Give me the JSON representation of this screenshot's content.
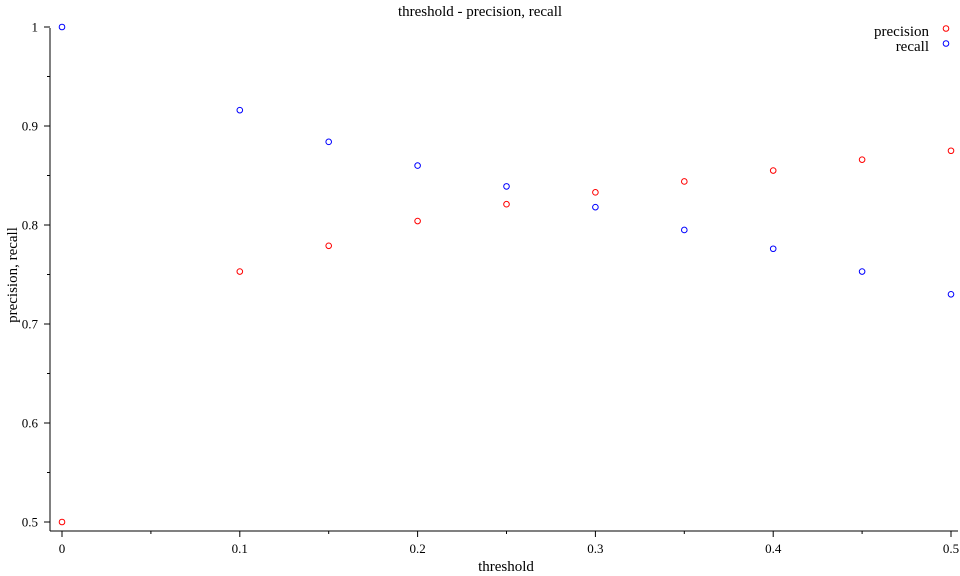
{
  "chart_data": {
    "type": "scatter",
    "title": "threshold - precision, recall",
    "xlabel": "threshold",
    "ylabel": "precision, recall",
    "xlim": [
      0,
      0.5
    ],
    "ylim": [
      0.5,
      1.0
    ],
    "x_major_ticks": [
      0,
      0.1,
      0.2,
      0.3,
      0.4,
      0.5
    ],
    "x_minor_ticks": [
      0.05,
      0.15,
      0.25,
      0.35,
      0.45
    ],
    "y_major_ticks": [
      0.5,
      0.6,
      0.7,
      0.8,
      0.9,
      1.0
    ],
    "y_minor_ticks": [
      0.55,
      0.65,
      0.75,
      0.85,
      0.95
    ],
    "x_tick_labels": [
      "0",
      "0.1",
      "0.2",
      "0.3",
      "0.4",
      "0.5"
    ],
    "y_tick_labels": [
      "0.5",
      "0.6",
      "0.7",
      "0.8",
      "0.9",
      "1"
    ],
    "grid": false,
    "legend_position": "top-right",
    "series": [
      {
        "name": "precision",
        "color": "#ff0000",
        "x": [
          0,
          0.1,
          0.15,
          0.2,
          0.25,
          0.3,
          0.35,
          0.4,
          0.45,
          0.5
        ],
        "y": [
          0.5,
          0.753,
          0.779,
          0.804,
          0.821,
          0.833,
          0.844,
          0.855,
          0.866,
          0.875
        ]
      },
      {
        "name": "recall",
        "color": "#0000ff",
        "x": [
          0,
          0.1,
          0.15,
          0.2,
          0.25,
          0.3,
          0.35,
          0.4,
          0.45,
          0.5
        ],
        "y": [
          1.0,
          0.916,
          0.884,
          0.86,
          0.839,
          0.818,
          0.795,
          0.776,
          0.753,
          0.73
        ]
      }
    ]
  }
}
